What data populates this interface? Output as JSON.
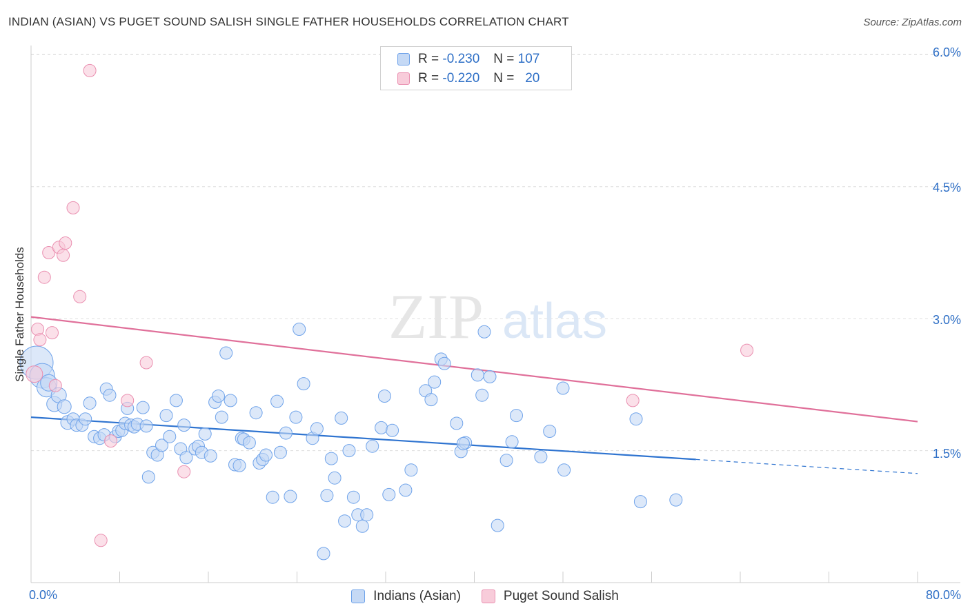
{
  "header": {
    "title": "INDIAN (ASIAN) VS PUGET SOUND SALISH SINGLE FATHER HOUSEHOLDS CORRELATION CHART",
    "source": "Source: ZipAtlas.com"
  },
  "watermark": {
    "zip": "ZIP",
    "atlas": "atlas"
  },
  "legend": {
    "rows": [
      {
        "r_label": "R =",
        "r_value": "-0.230",
        "n_label": "N =",
        "n_value": "107",
        "color": "#6fa3ea",
        "fill": "#c5d9f5"
      },
      {
        "r_label": "R =",
        "r_value": "-0.220",
        "n_label": "N =",
        "n_value": "20",
        "color": "#ea8fb0",
        "fill": "#f8ccda"
      }
    ]
  },
  "bottom_legend": {
    "items": [
      {
        "label": "Indians (Asian)"
      },
      {
        "label": "Puget Sound Salish"
      }
    ]
  },
  "chart_data": {
    "type": "scatter",
    "title": "INDIAN (ASIAN) VS PUGET SOUND SALISH SINGLE FATHER HOUSEHOLDS CORRELATION CHART",
    "ylabel": "Single Father Households",
    "xlabel": "",
    "xlim": [
      0,
      80
    ],
    "ylim": [
      0,
      6.3
    ],
    "x_tick_labels": [
      "0.0%",
      "80.0%"
    ],
    "y_ticks": [
      1.5,
      3.0,
      4.5,
      6.0
    ],
    "y_tick_labels": [
      "1.5%",
      "3.0%",
      "4.5%",
      "6.0%"
    ],
    "grid": true,
    "legend_position": "top-center",
    "series": [
      {
        "name": "Indians (Asian)",
        "color": "#6fa3ea",
        "fill": "#c5d9f5",
        "trend": {
          "x0": 0,
          "y0": 1.88,
          "x1": 60,
          "y1": 1.4,
          "dash_to_x": 80,
          "dash_to_y": 1.24
        },
        "points": [
          [
            0.5,
            2.5,
            24
          ],
          [
            1.0,
            2.35,
            18
          ],
          [
            1.4,
            2.22,
            14
          ],
          [
            1.6,
            2.27,
            12
          ],
          [
            2.1,
            2.03,
            11
          ],
          [
            2.5,
            2.13,
            11
          ],
          [
            3.0,
            2.0,
            10
          ],
          [
            3.3,
            1.82,
            10
          ],
          [
            3.8,
            1.86,
            9
          ],
          [
            4.1,
            1.79,
            9
          ],
          [
            4.6,
            1.79,
            9
          ],
          [
            4.9,
            1.86,
            9
          ],
          [
            5.3,
            2.04,
            9
          ],
          [
            5.7,
            1.66,
            9
          ],
          [
            6.2,
            1.64,
            9
          ],
          [
            6.6,
            1.68,
            9
          ],
          [
            6.8,
            2.2,
            9
          ],
          [
            7.1,
            2.13,
            9
          ],
          [
            7.6,
            1.66,
            9
          ],
          [
            7.9,
            1.72,
            9
          ],
          [
            8.2,
            1.73,
            9
          ],
          [
            8.5,
            1.81,
            9
          ],
          [
            8.7,
            1.98,
            9
          ],
          [
            9.0,
            1.79,
            9
          ],
          [
            9.3,
            1.77,
            9
          ],
          [
            9.6,
            1.8,
            9
          ],
          [
            10.1,
            1.99,
            9
          ],
          [
            10.4,
            1.78,
            9
          ],
          [
            10.6,
            1.2,
            9
          ],
          [
            11.0,
            1.48,
            9
          ],
          [
            11.4,
            1.45,
            9
          ],
          [
            11.8,
            1.56,
            9
          ],
          [
            12.2,
            1.9,
            9
          ],
          [
            12.5,
            1.66,
            9
          ],
          [
            13.1,
            2.07,
            9
          ],
          [
            13.5,
            1.52,
            9
          ],
          [
            13.8,
            1.79,
            9
          ],
          [
            14.0,
            1.42,
            9
          ],
          [
            14.8,
            1.52,
            9
          ],
          [
            15.1,
            1.55,
            9
          ],
          [
            15.4,
            1.48,
            9
          ],
          [
            15.7,
            1.69,
            9
          ],
          [
            16.2,
            1.44,
            9
          ],
          [
            16.6,
            2.05,
            9
          ],
          [
            16.9,
            2.12,
            9
          ],
          [
            17.2,
            1.88,
            9
          ],
          [
            17.6,
            2.61,
            9
          ],
          [
            18.0,
            2.07,
            9
          ],
          [
            18.4,
            1.34,
            9
          ],
          [
            18.8,
            1.33,
            9
          ],
          [
            19.0,
            1.64,
            9
          ],
          [
            19.2,
            1.63,
            9
          ],
          [
            19.7,
            1.59,
            9
          ],
          [
            20.3,
            1.93,
            9
          ],
          [
            20.6,
            1.36,
            9
          ],
          [
            20.9,
            1.4,
            9
          ],
          [
            21.2,
            1.45,
            9
          ],
          [
            21.8,
            0.97,
            9
          ],
          [
            22.2,
            2.06,
            9
          ],
          [
            22.5,
            1.48,
            9
          ],
          [
            23.0,
            1.7,
            9
          ],
          [
            23.4,
            0.98,
            9
          ],
          [
            23.9,
            1.88,
            9
          ],
          [
            24.2,
            2.88,
            9
          ],
          [
            24.6,
            2.26,
            9
          ],
          [
            25.4,
            1.64,
            9
          ],
          [
            25.8,
            1.75,
            9
          ],
          [
            26.4,
            0.33,
            9
          ],
          [
            26.7,
            0.99,
            9
          ],
          [
            27.1,
            1.41,
            9
          ],
          [
            27.4,
            1.19,
            9
          ],
          [
            28.0,
            1.87,
            9
          ],
          [
            28.3,
            0.7,
            9
          ],
          [
            28.7,
            1.5,
            9
          ],
          [
            29.1,
            0.97,
            9
          ],
          [
            29.5,
            0.77,
            9
          ],
          [
            29.9,
            0.64,
            9
          ],
          [
            30.3,
            0.77,
            9
          ],
          [
            30.8,
            1.55,
            9
          ],
          [
            31.6,
            1.76,
            9
          ],
          [
            31.9,
            2.12,
            9
          ],
          [
            32.3,
            1.0,
            9
          ],
          [
            32.6,
            1.73,
            9
          ],
          [
            33.8,
            1.05,
            9
          ],
          [
            34.3,
            1.28,
            9
          ],
          [
            35.6,
            2.18,
            9
          ],
          [
            36.1,
            2.08,
            9
          ],
          [
            36.4,
            2.28,
            9
          ],
          [
            37.0,
            2.54,
            9
          ],
          [
            37.3,
            2.49,
            9
          ],
          [
            38.4,
            1.81,
            9
          ],
          [
            38.8,
            1.49,
            9
          ],
          [
            39.2,
            1.59,
            9
          ],
          [
            40.3,
            2.36,
            9
          ],
          [
            40.7,
            2.13,
            9
          ],
          [
            40.9,
            2.85,
            9
          ],
          [
            41.4,
            2.34,
            9
          ],
          [
            42.1,
            0.65,
            9
          ],
          [
            42.9,
            1.39,
            9
          ],
          [
            43.4,
            1.6,
            9
          ],
          [
            43.8,
            1.9,
            9
          ],
          [
            46.0,
            1.43,
            9
          ],
          [
            46.8,
            1.72,
            9
          ],
          [
            48.1,
            1.28,
            9
          ],
          [
            48.0,
            2.21,
            9
          ],
          [
            54.6,
            1.86,
            9
          ],
          [
            55.0,
            0.92,
            9
          ],
          [
            58.2,
            0.94,
            9
          ],
          [
            39.0,
            1.58,
            9
          ]
        ]
      },
      {
        "name": "Puget Sound Salish",
        "color": "#ea8fb0",
        "fill": "#f8ccda",
        "trend": {
          "x0": 0,
          "y0": 3.02,
          "x1": 80,
          "y1": 1.83
        },
        "points": [
          [
            0.3,
            2.37,
            12
          ],
          [
            0.6,
            2.88,
            9
          ],
          [
            0.8,
            2.76,
            9
          ],
          [
            1.2,
            3.47,
            9
          ],
          [
            1.6,
            3.75,
            9
          ],
          [
            1.9,
            2.84,
            9
          ],
          [
            2.2,
            2.24,
            9
          ],
          [
            2.5,
            3.81,
            9
          ],
          [
            2.9,
            3.72,
            9
          ],
          [
            3.1,
            3.86,
            9
          ],
          [
            3.8,
            4.26,
            9
          ],
          [
            4.4,
            3.25,
            9
          ],
          [
            5.3,
            5.82,
            9
          ],
          [
            6.3,
            0.48,
            9
          ],
          [
            7.2,
            1.61,
            9
          ],
          [
            8.7,
            2.07,
            9
          ],
          [
            10.4,
            2.5,
            9
          ],
          [
            13.8,
            1.26,
            9
          ],
          [
            54.3,
            2.07,
            9
          ],
          [
            64.6,
            2.64,
            9
          ]
        ]
      }
    ]
  }
}
